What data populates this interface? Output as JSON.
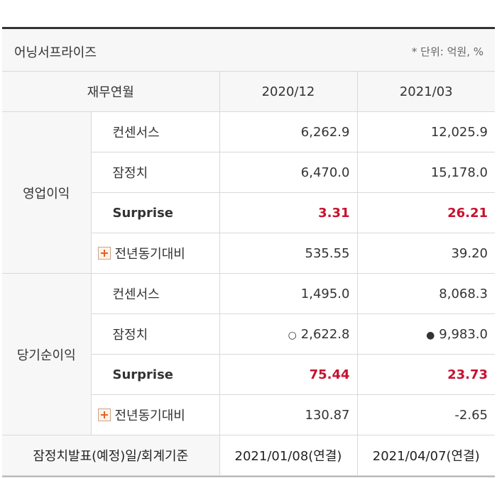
{
  "header": {
    "title": "어닝서프라이즈",
    "unit": "* 단위: 억원, %"
  },
  "columns": {
    "label": "재무연월",
    "c1": "2020/12",
    "c2": "2021/03"
  },
  "operating": {
    "group": "영업이익",
    "rows": [
      {
        "label": "컨센서스",
        "v1": "6,262.9",
        "v2": "12,025.9"
      },
      {
        "label": "잠정치",
        "v1": "6,470.0",
        "v2": "15,178.0"
      },
      {
        "label": "Surprise",
        "v1": "3.31",
        "v2": "26.21"
      },
      {
        "label": "전년동기대비",
        "v1": "535.55",
        "v2": "39.20"
      }
    ]
  },
  "net": {
    "group": "당기순이익",
    "rows": [
      {
        "label": "컨센서스",
        "v1": "1,495.0",
        "v2": "8,068.3"
      },
      {
        "label": "잠정치",
        "v1": "2,622.8",
        "v2": "9,983.0",
        "m1": "○",
        "m2": "●"
      },
      {
        "label": "Surprise",
        "v1": "75.44",
        "v2": "23.73"
      },
      {
        "label": "전년동기대비",
        "v1": "130.87",
        "v2": "-2.65"
      }
    ]
  },
  "footer": {
    "label": "잠정치발표(예정)일/회계기준",
    "v1": "2021/01/08(연결)",
    "v2": "2021/04/07(연결)"
  }
}
